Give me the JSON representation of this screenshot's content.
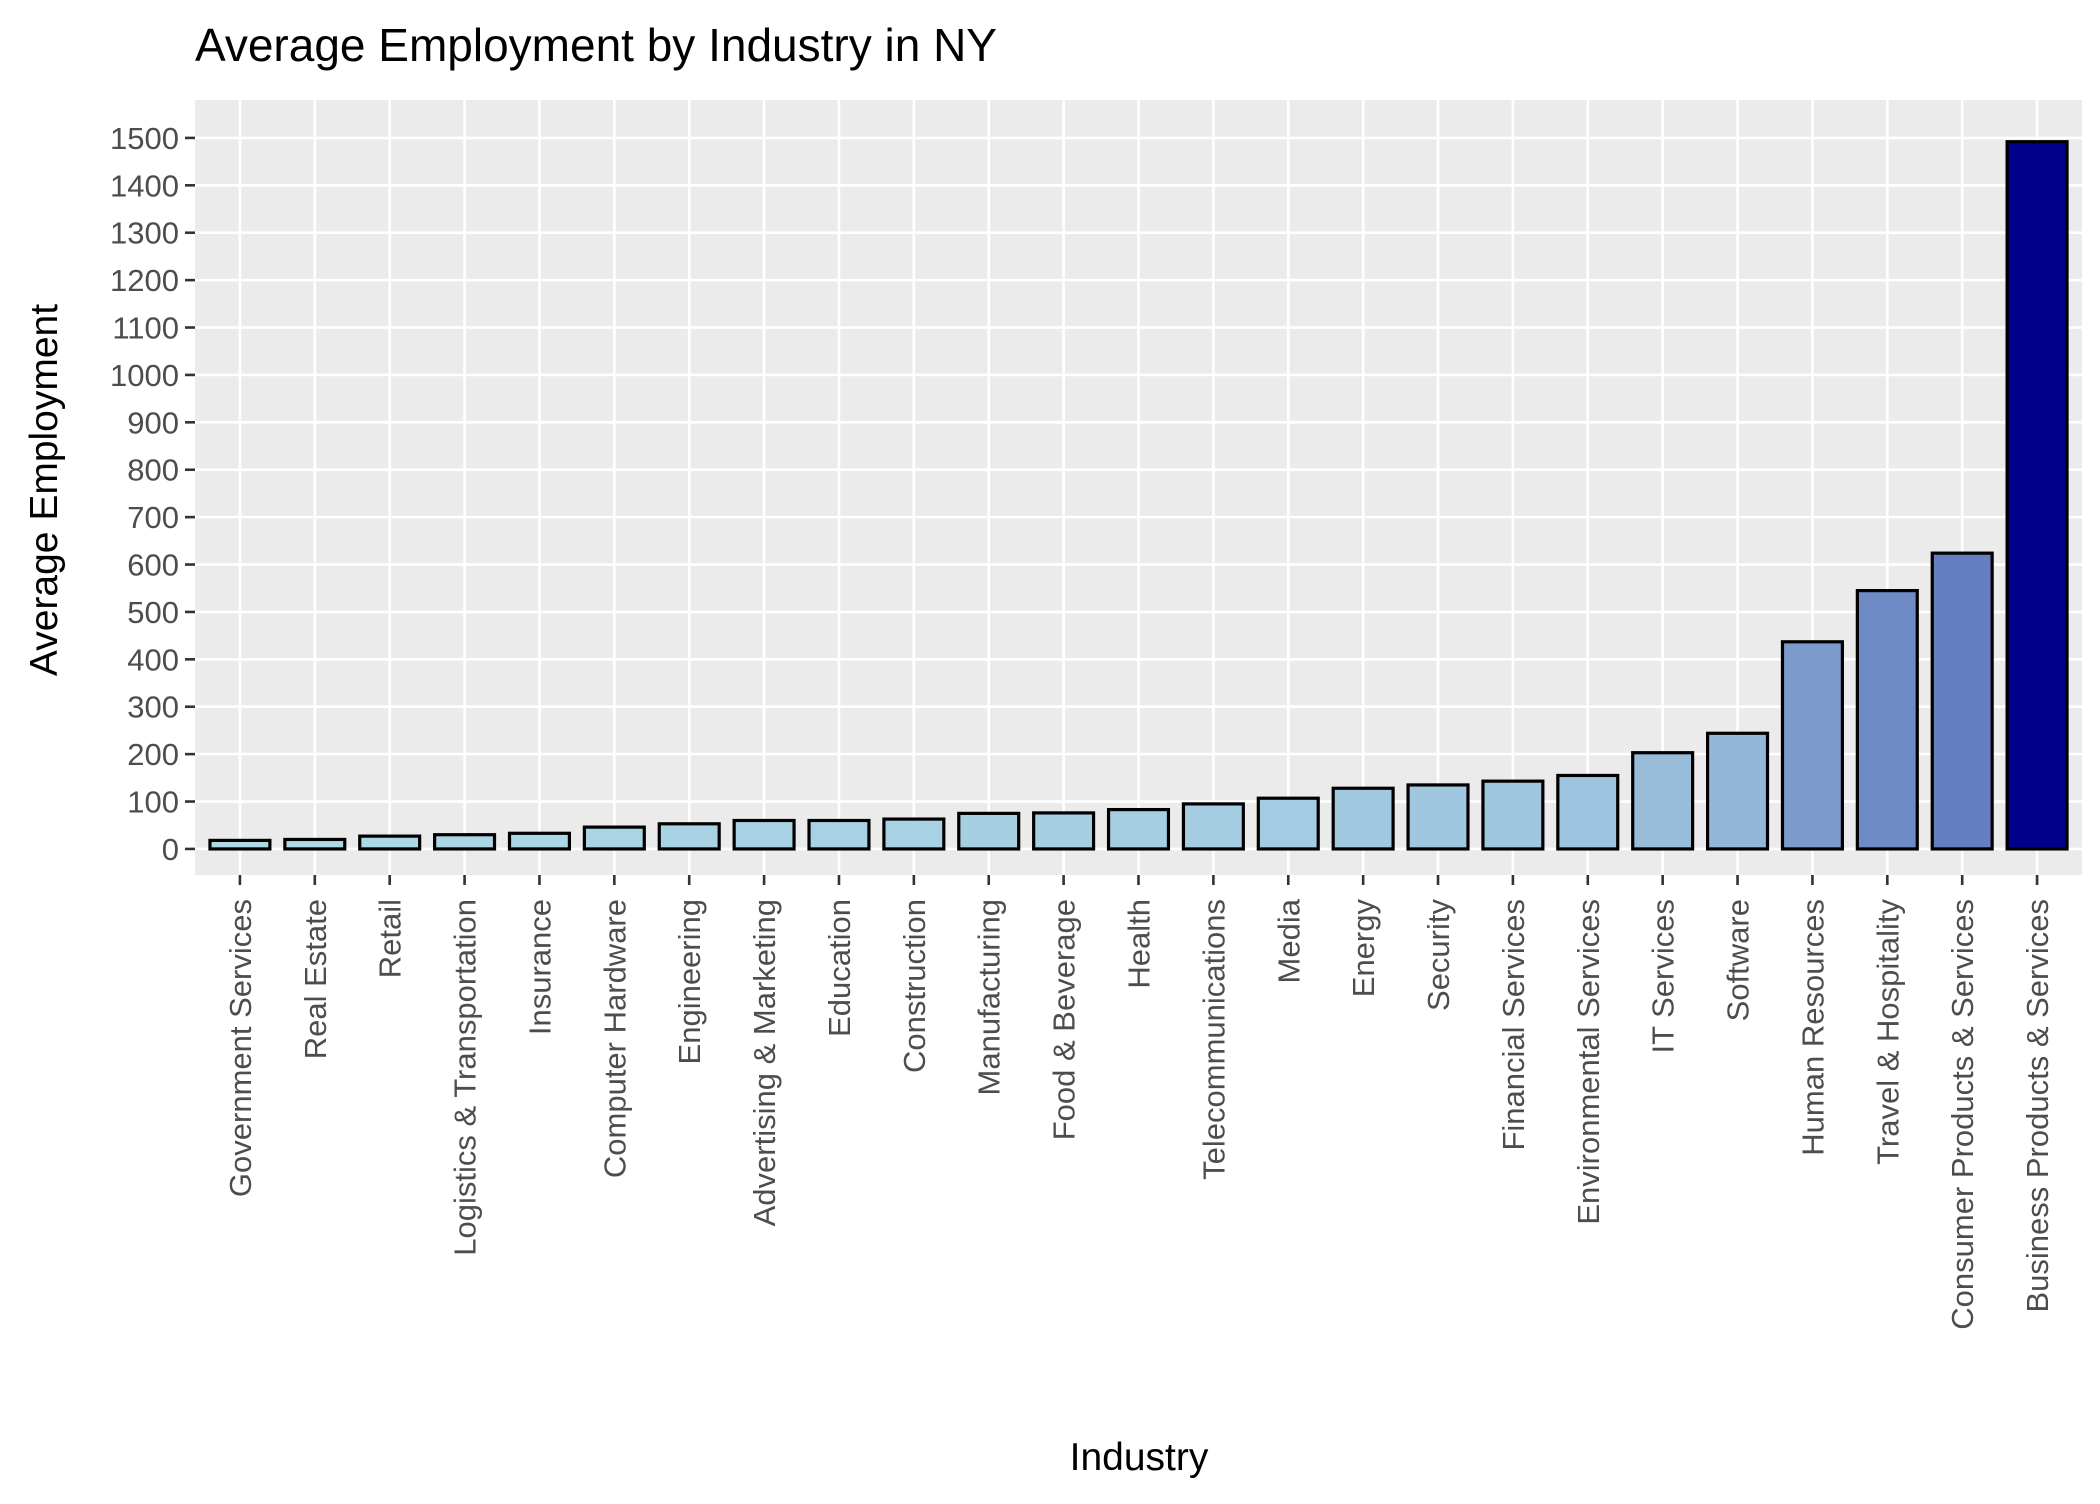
{
  "chart_data": {
    "type": "bar",
    "title": "Average Employment by Industry in NY",
    "xlabel": "Industry",
    "ylabel": "Average Employment",
    "ylim": [
      -55,
      1580
    ],
    "y_ticks": [
      0,
      100,
      200,
      300,
      400,
      500,
      600,
      700,
      800,
      900,
      1000,
      1100,
      1200,
      1300,
      1400,
      1500
    ],
    "grid": true,
    "legend": "none",
    "categories": [
      "Government Services",
      "Real Estate",
      "Retail",
      "Logistics & Transportation",
      "Insurance",
      "Computer Hardware",
      "Engineering",
      "Advertising & Marketing",
      "Education",
      "Construction",
      "Manufacturing",
      "Food & Beverage",
      "Health",
      "Telecommunications",
      "Media",
      "Energy",
      "Security",
      "Financial Services",
      "Environmental Services",
      "IT Services",
      "Software",
      "Human Resources",
      "Travel & Hospitality",
      "Consumer Products & Services",
      "Business Products & Services"
    ],
    "values": [
      18,
      20,
      27,
      30,
      33,
      46,
      53,
      60,
      60,
      63,
      75,
      76,
      83,
      95,
      107,
      128,
      135,
      143,
      155,
      203,
      244,
      437,
      545,
      624,
      1492
    ],
    "colors": {
      "panel_background": "#ebebeb",
      "gridline": "#ffffff",
      "bar_outline": "#000000",
      "fill_low": "#add8e6",
      "fill_high": "#00008b"
    }
  }
}
